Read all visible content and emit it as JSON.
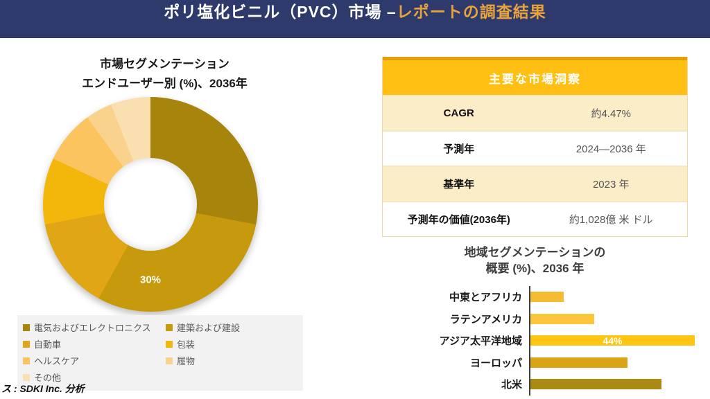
{
  "header": {
    "title_white": "ポリ塩化ビニル（PVC）市場 –",
    "title_gold": "レポートの調査結果"
  },
  "source": "ス : SDKI Inc. 分析",
  "insights_table": {
    "header": "主要な市場洞察",
    "rows": [
      {
        "label": "CAGR",
        "value": "約4.47%"
      },
      {
        "label": "予測年",
        "value": "2024—2036 年"
      },
      {
        "label": "基準年",
        "value": "2023 年"
      },
      {
        "label": "予測年の価値(2036年)",
        "value": "約1,028億 米 ドル"
      }
    ]
  },
  "colors": {
    "header_bg": "#2D3A6B",
    "header_accent": "#E9A33C",
    "table_header_bg": "#FFC013",
    "table_top_strip": "#E2A008",
    "table_cream_row": "#FCEDC9",
    "legend_bg": "#F2F2F2"
  },
  "chart_data": [
    {
      "type": "pie",
      "subtype": "donut",
      "title_line1": "市場セグメンテーション",
      "title_line2": "エンドユーザー別 (%)、2036年",
      "categories": [
        "電気およびエレクトロニクス",
        "建築および建設",
        "自動車",
        "包装",
        "ヘルスケア",
        "履物",
        "その他"
      ],
      "values": [
        28,
        30,
        14,
        10,
        8,
        4,
        6
      ],
      "colors": [
        "#A7850C",
        "#C7990D",
        "#E1A616",
        "#F3B70C",
        "#FBC45F",
        "#F9D28D",
        "#FADFB0"
      ],
      "shown_data_labels": [
        "30%"
      ],
      "center_label": "30%",
      "hole_ratio": 0.43,
      "legend_position": "bottom"
    },
    {
      "type": "bar",
      "orientation": "horizontal",
      "title_line1": "地域セグメンテーションの",
      "title_line2": "概要 (%)、2036 年",
      "categories": [
        "中東とアフリカ",
        "ラテンアメリカ",
        "アジア太平洋地域",
        "ヨーロッパ",
        "北米"
      ],
      "values": [
        9,
        17,
        44,
        26,
        35
      ],
      "data_labels": [
        "",
        "",
        "44%",
        "",
        ""
      ],
      "colors": [
        "#F5BC33",
        "#FCC53B",
        "#FFC514",
        "#DAA417",
        "#AA8A12"
      ],
      "xlabel": "",
      "ylabel": "",
      "grid": false,
      "legend_position": "none"
    }
  ]
}
